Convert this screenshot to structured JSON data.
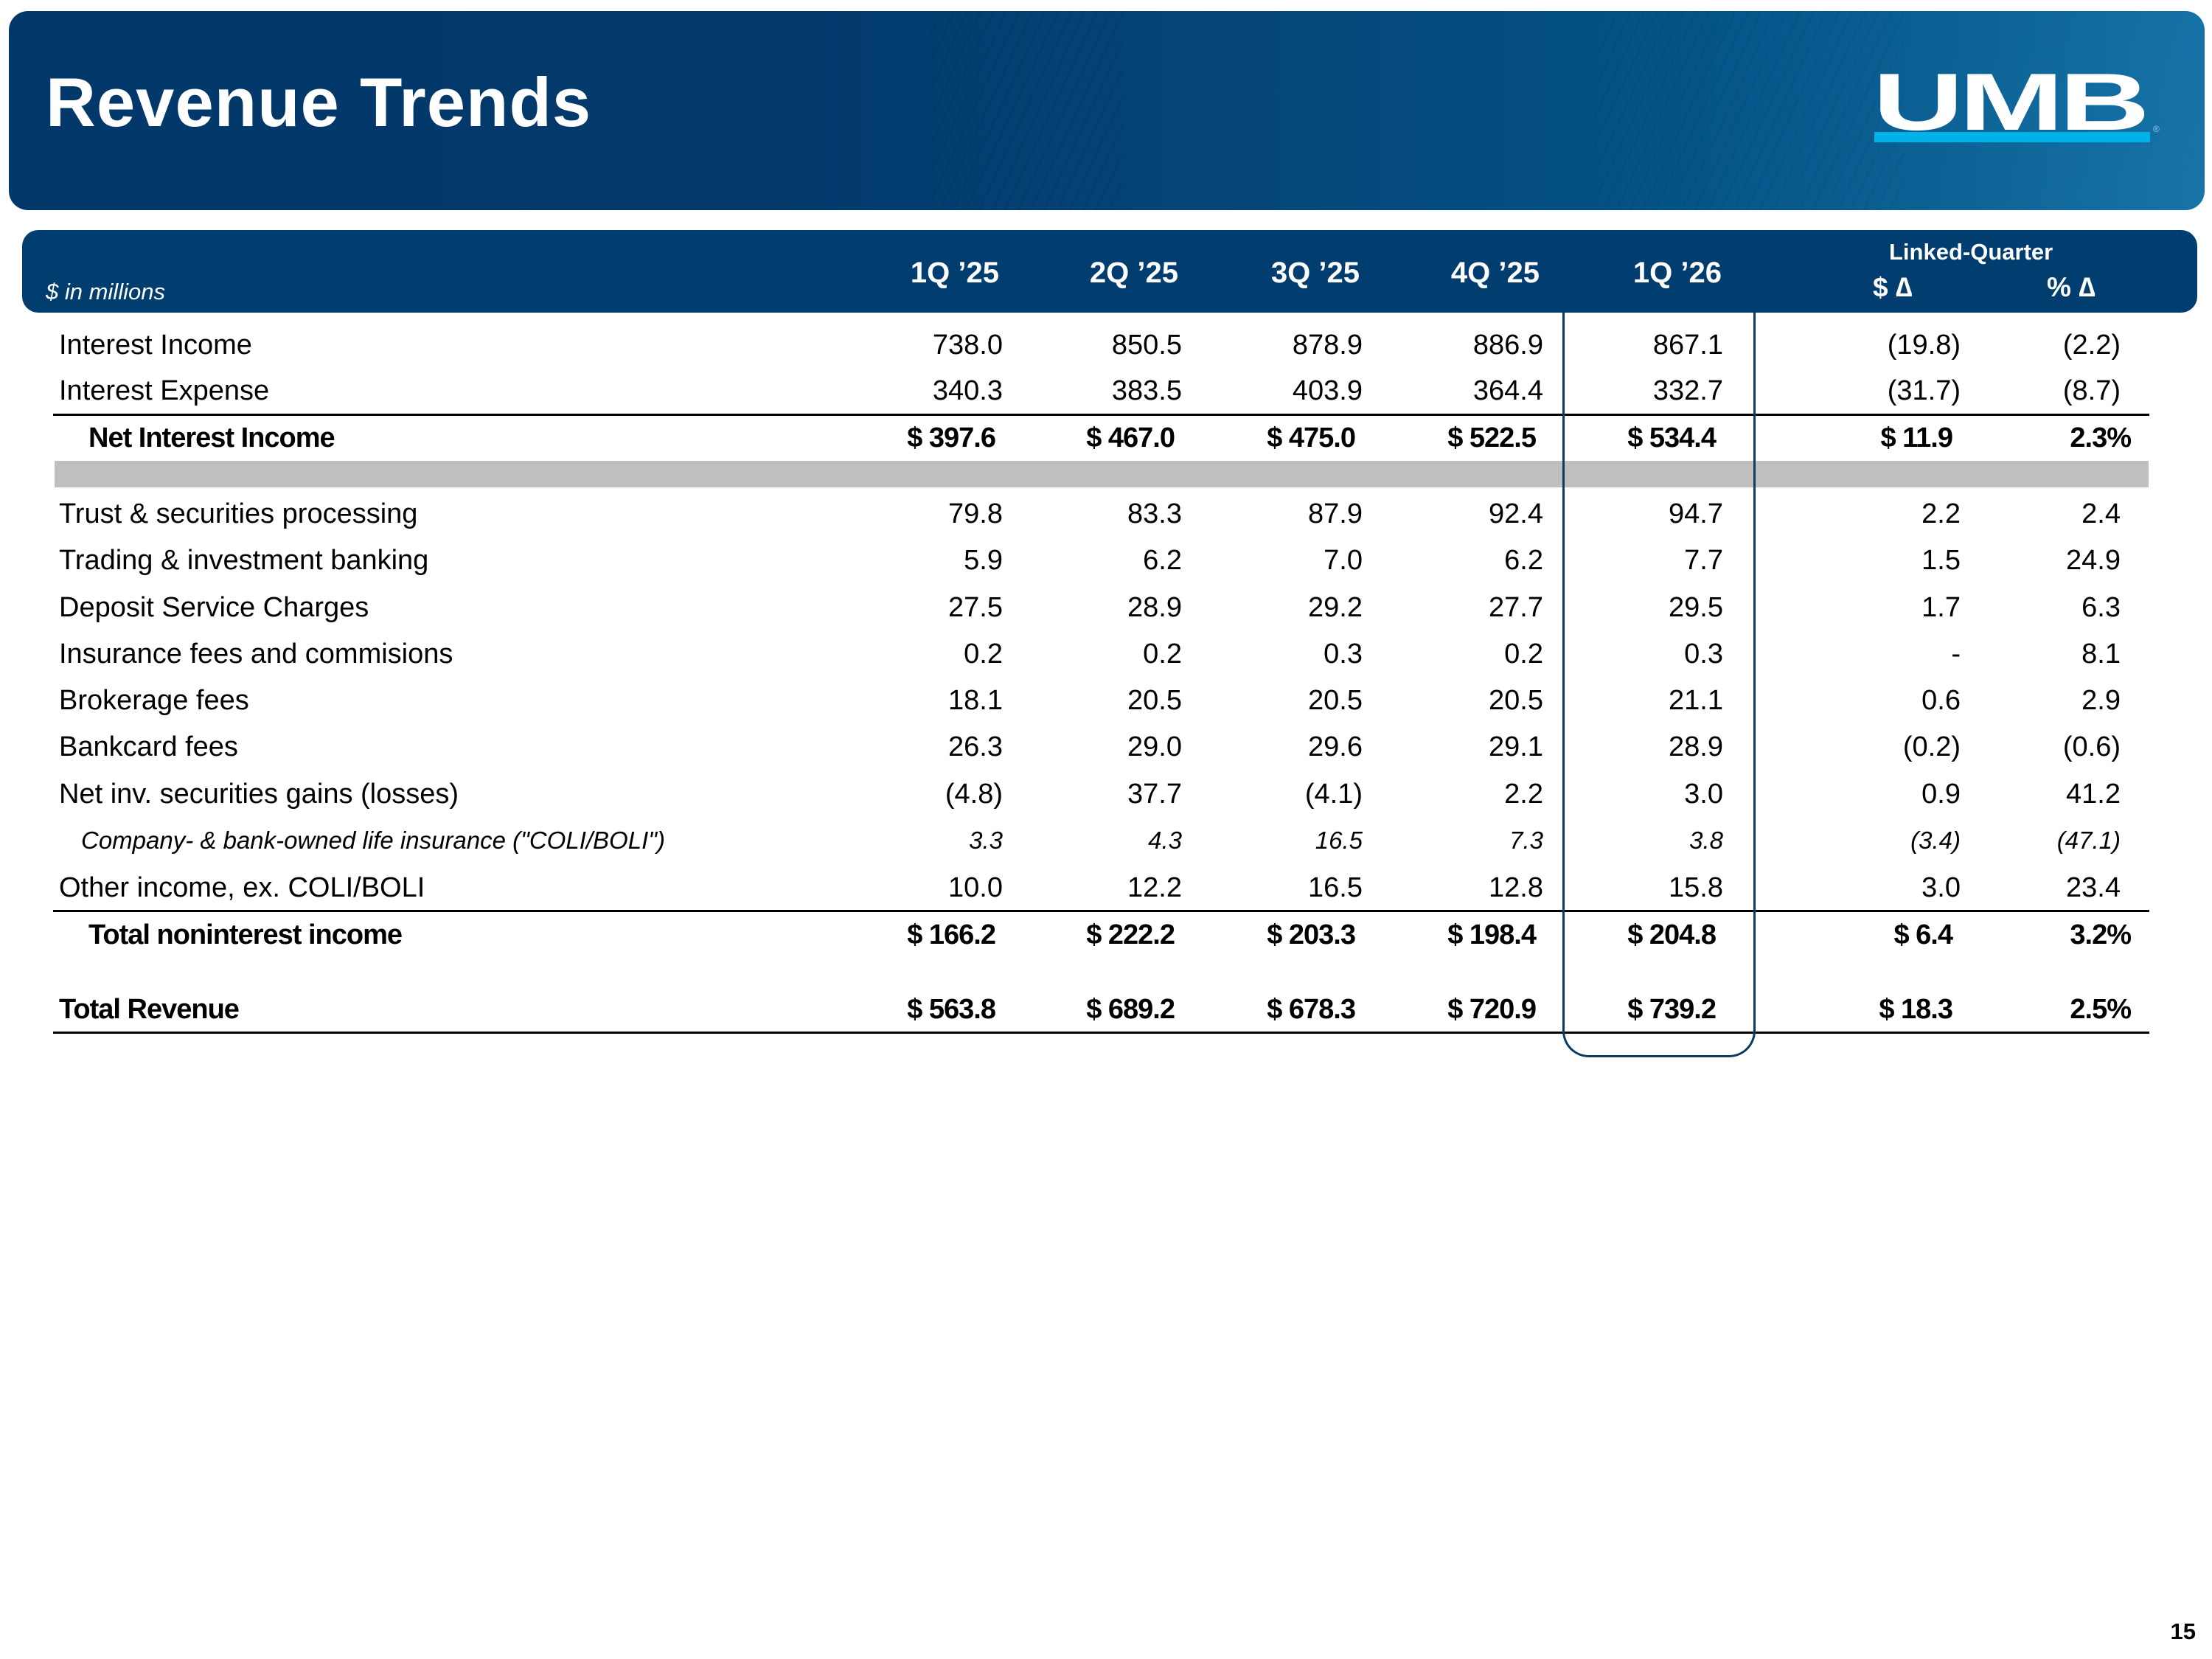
{
  "slide": {
    "title": "Revenue Trends",
    "logo_text": "UMB",
    "logo_registered": "®",
    "page_number": "15",
    "colors": {
      "banner": "#023d70",
      "logo_bar": "#00b2e8",
      "highlight_box": "#0b3a66",
      "separator_band": "#bfbfbf"
    }
  },
  "table": {
    "units_label": "$ in millions",
    "quarter_headers": [
      "1Q ’25",
      "2Q ’25",
      "3Q ’25",
      "4Q ’25",
      "1Q ’26"
    ],
    "linked_quarter_label": "Linked-Quarter",
    "delta_headers": [
      "$ ∆",
      "% ∆"
    ],
    "highlighted_column": "1Q ’26",
    "rows": [
      {
        "label": "Interest Income",
        "values": [
          "738.0",
          "850.5",
          "878.9",
          "886.9",
          "867.1"
        ],
        "dollar_change": "(19.8)",
        "pct_change": "(2.2)"
      },
      {
        "label": "Interest Expense",
        "values": [
          "340.3",
          "383.5",
          "403.9",
          "364.4",
          "332.7"
        ],
        "dollar_change": "(31.7)",
        "pct_change": "(8.7)"
      },
      {
        "label": "Net Interest Income",
        "values": [
          "$ 397.6",
          "$ 467.0",
          "$ 475.0",
          "$ 522.5",
          "$ 534.4"
        ],
        "dollar_change": "$ 11.9",
        "pct_change": "2.3%"
      },
      {
        "label": "Trust & securities processing",
        "values": [
          "79.8",
          "83.3",
          "87.9",
          "92.4",
          "94.7"
        ],
        "dollar_change": "2.2",
        "pct_change": "2.4"
      },
      {
        "label": "Trading & investment banking",
        "values": [
          "5.9",
          "6.2",
          "7.0",
          "6.2",
          "7.7"
        ],
        "dollar_change": "1.5",
        "pct_change": "24.9"
      },
      {
        "label": "Deposit Service Charges",
        "values": [
          "27.5",
          "28.9",
          "29.2",
          "27.7",
          "29.5"
        ],
        "dollar_change": "1.7",
        "pct_change": "6.3"
      },
      {
        "label": "Insurance fees and commisions",
        "values": [
          "0.2",
          "0.2",
          "0.3",
          "0.2",
          "0.3"
        ],
        "dollar_change": "-",
        "pct_change": "8.1"
      },
      {
        "label": "Brokerage fees",
        "values": [
          "18.1",
          "20.5",
          "20.5",
          "20.5",
          "21.1"
        ],
        "dollar_change": "0.6",
        "pct_change": "2.9"
      },
      {
        "label": "Bankcard fees",
        "values": [
          "26.3",
          "29.0",
          "29.6",
          "29.1",
          "28.9"
        ],
        "dollar_change": "(0.2)",
        "pct_change": "(0.6)"
      },
      {
        "label": "Net inv. securities gains (losses)",
        "values": [
          "(4.8)",
          "37.7",
          "(4.1)",
          "2.2",
          "3.0"
        ],
        "dollar_change": "0.9",
        "pct_change": "41.2"
      },
      {
        "label": "Company- & bank-owned life insurance (\"COLI/BOLI\")",
        "values": [
          "3.3",
          "4.3",
          "16.5",
          "7.3",
          "3.8"
        ],
        "dollar_change": "(3.4)",
        "pct_change": "(47.1)"
      },
      {
        "label": "Other income, ex. COLI/BOLI",
        "values": [
          "10.0",
          "12.2",
          "16.5",
          "12.8",
          "15.8"
        ],
        "dollar_change": "3.0",
        "pct_change": "23.4"
      },
      {
        "label": "Total noninterest income",
        "values": [
          "$ 166.2",
          "$ 222.2",
          "$ 203.3",
          "$ 198.4",
          "$ 204.8"
        ],
        "dollar_change": "$ 6.4",
        "pct_change": "3.2%"
      },
      {
        "label": "Total Revenue",
        "values": [
          "$ 563.8",
          "$ 689.2",
          "$ 678.3",
          "$ 720.9",
          "$ 739.2"
        ],
        "dollar_change": "$ 18.3",
        "pct_change": "2.5%"
      }
    ]
  }
}
